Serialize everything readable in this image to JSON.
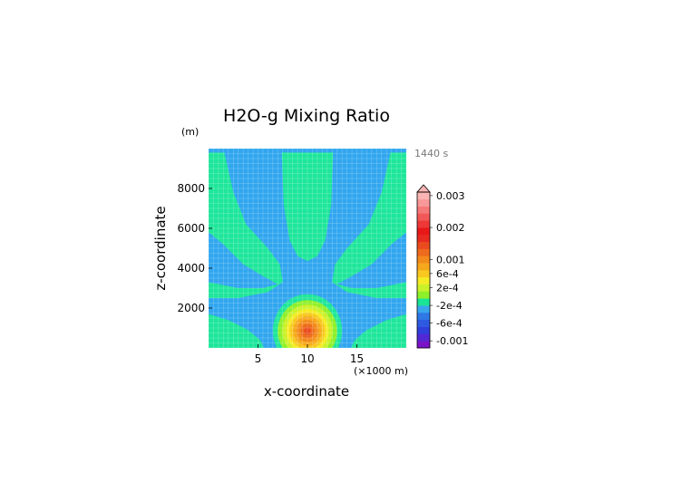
{
  "chart_data": {
    "type": "heatmap",
    "title": "H2O-g Mixing Ratio",
    "time_label": "1440 s",
    "xlabel": "x-coordinate",
    "ylabel": "z-coordinate",
    "x_unit": "(×1000 m)",
    "y_unit": "(m)",
    "xlim": [
      0,
      20
    ],
    "ylim": [
      0,
      10000
    ],
    "x_ticks": [
      5,
      10,
      15
    ],
    "y_ticks": [
      2000,
      4000,
      6000,
      8000
    ],
    "x_tick_labels": [
      "5",
      "10",
      "15"
    ],
    "y_tick_labels": [
      "2000",
      "4000",
      "6000",
      "8000"
    ],
    "grid": true,
    "colorbar": {
      "levels": [
        {
          "color": "#7a12c8"
        },
        {
          "color": "#5128d4"
        },
        {
          "color": "#2f3fdc"
        },
        {
          "color": "#2d5ae0"
        },
        {
          "color": "#2f78e6"
        },
        {
          "color": "#39a6ec"
        },
        {
          "color": "#1ae496"
        },
        {
          "color": "#8ef02a"
        },
        {
          "color": "#c9f22a"
        },
        {
          "color": "#f4ec24"
        },
        {
          "color": "#f8c820"
        },
        {
          "color": "#f6a81c"
        },
        {
          "color": "#f28a1c"
        },
        {
          "color": "#ee6a1c"
        },
        {
          "color": "#ea4a1e"
        },
        {
          "color": "#e82a20"
        },
        {
          "color": "#e81818"
        },
        {
          "color": "#ee3838"
        },
        {
          "color": "#f25858"
        },
        {
          "color": "#f67878"
        },
        {
          "color": "#f89898"
        },
        {
          "color": "#fab4b4"
        }
      ],
      "labels": [
        {
          "text": "0.003",
          "level": 21.5
        },
        {
          "text": "0.002",
          "level": 17
        },
        {
          "text": "0.001",
          "level": 12.5
        },
        {
          "text": "6e-4",
          "level": 10.5
        },
        {
          "text": "2e-4",
          "level": 8.5
        },
        {
          "text": "-2e-4",
          "level": 6
        },
        {
          "text": "-6e-4",
          "level": 3.5
        },
        {
          "text": "-0.001",
          "level": 1
        }
      ]
    },
    "field": {
      "background_color": "#31a6ef",
      "fill_color": "#1ee69a",
      "regions": [
        {
          "name": "upper-left-band",
          "color": "#1ee69a",
          "points": [
            [
              0,
              9800
            ],
            [
              1.6,
              9800
            ],
            [
              2.5,
              7800
            ],
            [
              3.8,
              6200
            ],
            [
              6,
              5000
            ],
            [
              7.2,
              4200
            ],
            [
              7.5,
              3300
            ],
            [
              6,
              2800
            ],
            [
              3,
              2500
            ],
            [
              0,
              2500
            ]
          ]
        },
        {
          "name": "upper-right-band",
          "color": "#1ee69a",
          "points": [
            [
              20,
              9800
            ],
            [
              18.4,
              9800
            ],
            [
              17.5,
              7800
            ],
            [
              16.2,
              6200
            ],
            [
              14,
              5000
            ],
            [
              12.8,
              4200
            ],
            [
              12.5,
              3300
            ],
            [
              14,
              2800
            ],
            [
              17,
              2500
            ],
            [
              20,
              2500
            ]
          ]
        },
        {
          "name": "central-column",
          "color": "#1ee69a",
          "points": [
            [
              7.4,
              9800
            ],
            [
              12.6,
              9800
            ],
            [
              12.4,
              7200
            ],
            [
              11.8,
              5400
            ],
            [
              11,
              4600
            ],
            [
              10,
              4350
            ],
            [
              9,
              4600
            ],
            [
              8.2,
              5400
            ],
            [
              7.6,
              7200
            ]
          ]
        },
        {
          "name": "upper-left-blue",
          "color": "#31a6ef",
          "points": [
            [
              0,
              5800
            ],
            [
              1.5,
              5200
            ],
            [
              3.5,
              4200
            ],
            [
              5.5,
              3600
            ],
            [
              7,
              3200
            ],
            [
              5.5,
              3000
            ],
            [
              3,
              3000
            ],
            [
              0,
              3300
            ]
          ]
        },
        {
          "name": "upper-right-blue",
          "color": "#31a6ef",
          "points": [
            [
              20,
              5800
            ],
            [
              18.5,
              5200
            ],
            [
              16.5,
              4200
            ],
            [
              14.5,
              3600
            ],
            [
              13,
              3200
            ],
            [
              14.5,
              3000
            ],
            [
              17,
              3000
            ],
            [
              20,
              3300
            ]
          ]
        },
        {
          "name": "mid-blue-band",
          "color": "#31a6ef",
          "points": [
            [
              7.4,
              3600
            ],
            [
              8.6,
              3000
            ],
            [
              9.4,
              2500
            ],
            [
              10.6,
              2500
            ],
            [
              11.4,
              3000
            ],
            [
              12.6,
              3600
            ],
            [
              11.2,
              3400
            ],
            [
              10,
              3300
            ],
            [
              8.8,
              3400
            ]
          ]
        },
        {
          "name": "left-low-blue",
          "color": "#31a6ef",
          "points": [
            [
              0,
              1900
            ],
            [
              2.5,
              1600
            ],
            [
              5,
              1200
            ],
            [
              6.5,
              700
            ],
            [
              7.5,
              200
            ],
            [
              0,
              200
            ]
          ]
        },
        {
          "name": "right-low-blue",
          "color": "#31a6ef",
          "points": [
            [
              20,
              1900
            ],
            [
              17.5,
              1600
            ],
            [
              15,
              1200
            ],
            [
              13.5,
              700
            ],
            [
              12.5,
              200
            ],
            [
              20,
              200
            ]
          ]
        },
        {
          "name": "lower-left-band",
          "color": "#1ee69a",
          "points": [
            [
              0,
              1700
            ],
            [
              2,
              1400
            ],
            [
              4,
              900
            ],
            [
              5.2,
              400
            ],
            [
              5.6,
              0
            ],
            [
              0,
              0
            ]
          ]
        },
        {
          "name": "lower-right-band",
          "color": "#1ee69a",
          "points": [
            [
              20,
              1700
            ],
            [
              18,
              1400
            ],
            [
              16,
              900
            ],
            [
              14.8,
              400
            ],
            [
              14.4,
              0
            ],
            [
              20,
              0
            ]
          ]
        }
      ],
      "blob_center": [
        10,
        850
      ],
      "blob_rings": [
        {
          "rx": 3.5,
          "ry": 1850,
          "color": "#1ee69a"
        },
        {
          "rx": 3.0,
          "ry": 1550,
          "color": "#8ef02a"
        },
        {
          "rx": 2.55,
          "ry": 1320,
          "color": "#c9f22a"
        },
        {
          "rx": 2.15,
          "ry": 1100,
          "color": "#f4ec24"
        },
        {
          "rx": 1.8,
          "ry": 920,
          "color": "#f8c820"
        },
        {
          "rx": 1.45,
          "ry": 740,
          "color": "#f6a81c"
        },
        {
          "rx": 1.1,
          "ry": 560,
          "color": "#f28a1c"
        },
        {
          "rx": 0.7,
          "ry": 360,
          "color": "#ee6a1c"
        },
        {
          "rx": 0.35,
          "ry": 180,
          "color": "#ea4a1e"
        }
      ]
    }
  }
}
